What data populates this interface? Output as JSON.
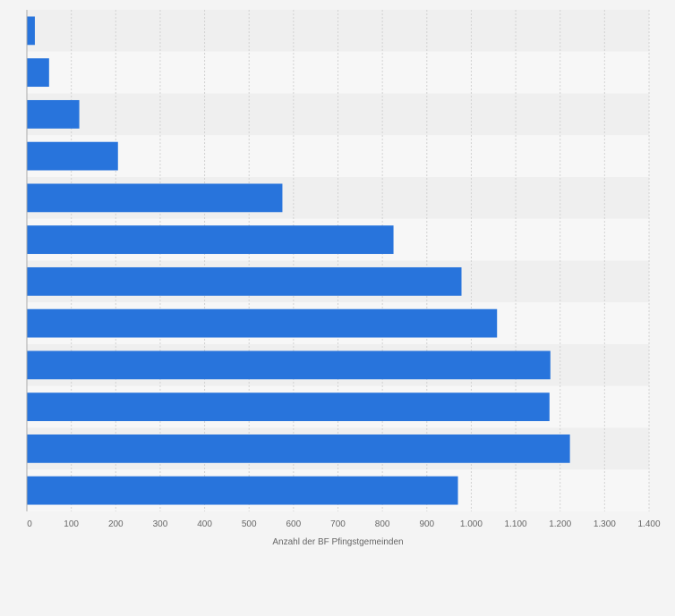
{
  "chart_data": {
    "type": "bar",
    "orientation": "horizontal",
    "categories": [
      "",
      "",
      "",
      "",
      "",
      "",
      "",
      "",
      "",
      "",
      "",
      ""
    ],
    "values": [
      18,
      50,
      118,
      205,
      575,
      825,
      978,
      1058,
      1178,
      1176,
      1222,
      970
    ],
    "xlabel": "Anzahl der BF Pfingstgemeinden",
    "ylabel": "",
    "xlim": [
      0,
      1400
    ],
    "x_ticks": [
      0,
      100,
      200,
      300,
      400,
      500,
      600,
      700,
      800,
      900,
      1000,
      1100,
      1200,
      1300,
      1400
    ],
    "x_tick_labels": [
      "0",
      "100",
      "200",
      "300",
      "400",
      "500",
      "600",
      "700",
      "800",
      "900",
      "1.000",
      "1.100",
      "1.200",
      "1.300",
      "1.400"
    ],
    "grid": true,
    "legend": "none",
    "colors": {
      "bar": "#2874dc",
      "band_dark": "#efefef",
      "band_light": "#f7f7f7",
      "grid": "#d2d2d2",
      "axis": "#aaaaaa"
    }
  }
}
